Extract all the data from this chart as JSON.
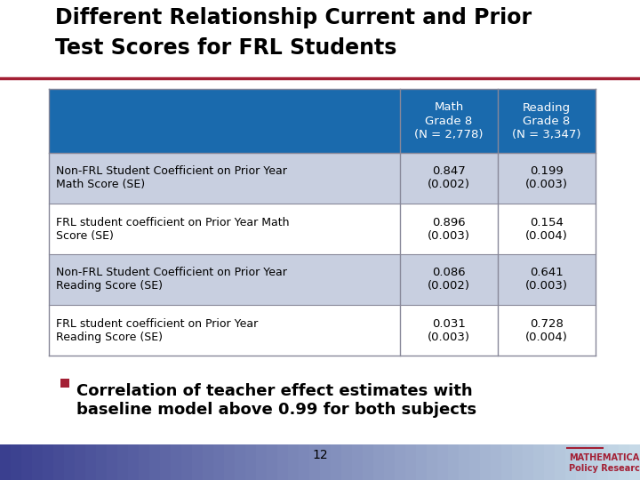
{
  "title_line1": "Different Relationship Current and Prior",
  "title_line2": "Test Scores for FRL Students",
  "title_fontsize": 17,
  "bg_color": "#ffffff",
  "header_bg": "#1a6aad",
  "header_text_color": "#ffffff",
  "col1_header": "Math\nGrade 8\n(N = 2,778)",
  "col2_header": "Reading\nGrade 8\n(N = 3,347)",
  "row_labels": [
    "Non-FRL Student Coefficient on Prior Year\nMath Score (SE)",
    "FRL student coefficient on Prior Year Math\nScore (SE)",
    "Non-FRL Student Coefficient on Prior Year\nReading Score (SE)",
    "FRL student coefficient on Prior Year\nReading Score (SE)"
  ],
  "col1_values": [
    "0.847\n(0.002)",
    "0.896\n(0.003)",
    "0.086\n(0.002)",
    "0.031\n(0.003)"
  ],
  "col2_values": [
    "0.199\n(0.003)",
    "0.154\n(0.004)",
    "0.641\n(0.003)",
    "0.728\n(0.004)"
  ],
  "row_odd_bg": "#c8cfe0",
  "row_even_bg": "#ffffff",
  "bullet_color": "#a31f34",
  "bullet_text": "Correlation of teacher effect estimates with\nbaseline model above 0.99 for both subjects",
  "bullet_fontsize": 13,
  "page_number": "12",
  "title_underline_color": "#a31f34",
  "mathematica_text": "MATHEMATICA\nPolicy Research",
  "mathematica_color": "#a31f34",
  "bottom_bar_colors": [
    "#3a4fa0",
    "#5a8ab0",
    "#c8dce8"
  ],
  "table_border_color": "#888899",
  "table_fontsize": 10
}
